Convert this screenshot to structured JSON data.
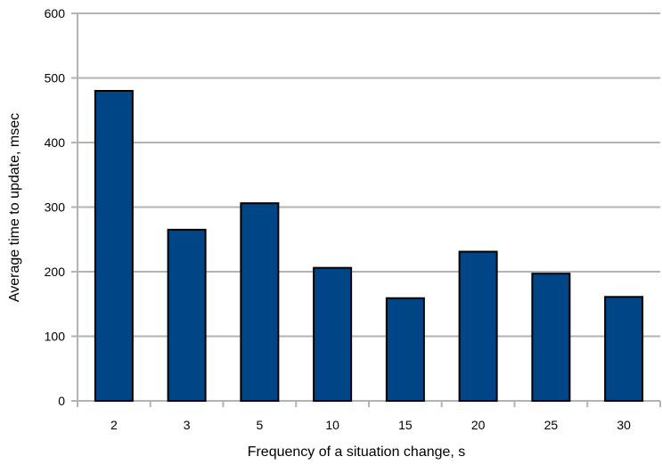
{
  "chart_data": {
    "type": "bar",
    "title": "",
    "xlabel": "Frequency of a situation change, s",
    "ylabel": "Average time to update, msec",
    "categories": [
      "2",
      "3",
      "5",
      "10",
      "15",
      "20",
      "25",
      "30"
    ],
    "values": [
      480,
      265,
      306,
      206,
      159,
      231,
      197,
      161
    ],
    "ylim": [
      0,
      600
    ],
    "yticks": [
      "0",
      "100",
      "200",
      "300",
      "400",
      "500",
      "600"
    ],
    "grid": true,
    "legend": "none",
    "colors": {
      "bar": "#004586",
      "bar_edge": "#000000",
      "grid": "#b3b3b3"
    }
  }
}
